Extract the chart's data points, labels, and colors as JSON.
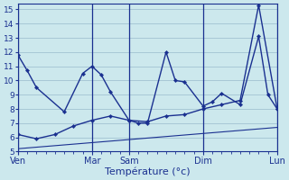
{
  "background_color": "#cce8ed",
  "grid_color": "#99bbcc",
  "line_color": "#1a3090",
  "xlabel": "Température (°c)",
  "ylim": [
    5,
    15.4
  ],
  "xlim": [
    0,
    28
  ],
  "yticks": [
    5,
    6,
    7,
    8,
    9,
    10,
    11,
    12,
    13,
    14,
    15
  ],
  "xtick_labels": [
    "Ven",
    "Mar",
    "Sam",
    "Dim",
    "Lun"
  ],
  "xtick_positions": [
    0,
    8,
    12,
    20,
    28
  ],
  "vlines": [
    0,
    8,
    12,
    20,
    28
  ],
  "line1_x": [
    0,
    1,
    2,
    5,
    7,
    8,
    9,
    10,
    12,
    13,
    14,
    16,
    17,
    18,
    20,
    21,
    22,
    24,
    26,
    27,
    28
  ],
  "line1_y": [
    11.8,
    10.7,
    9.5,
    7.8,
    10.5,
    11.0,
    10.4,
    9.2,
    7.2,
    7.0,
    7.0,
    12.0,
    10.0,
    9.9,
    8.2,
    8.5,
    9.1,
    8.3,
    13.1,
    9.0,
    8.0
  ],
  "line2_x": [
    0,
    2,
    4,
    6,
    8,
    10,
    12,
    14,
    16,
    18,
    20,
    22,
    24,
    26,
    28
  ],
  "line2_y": [
    6.2,
    5.9,
    6.2,
    6.8,
    7.2,
    7.5,
    7.2,
    7.1,
    7.5,
    7.6,
    8.0,
    8.3,
    8.6,
    15.3,
    8.0
  ],
  "line3_x": [
    0,
    28
  ],
  "line3_y": [
    5.2,
    6.7
  ],
  "markersize": 2.2,
  "linewidth": 1.0,
  "lw_thin": 0.8
}
